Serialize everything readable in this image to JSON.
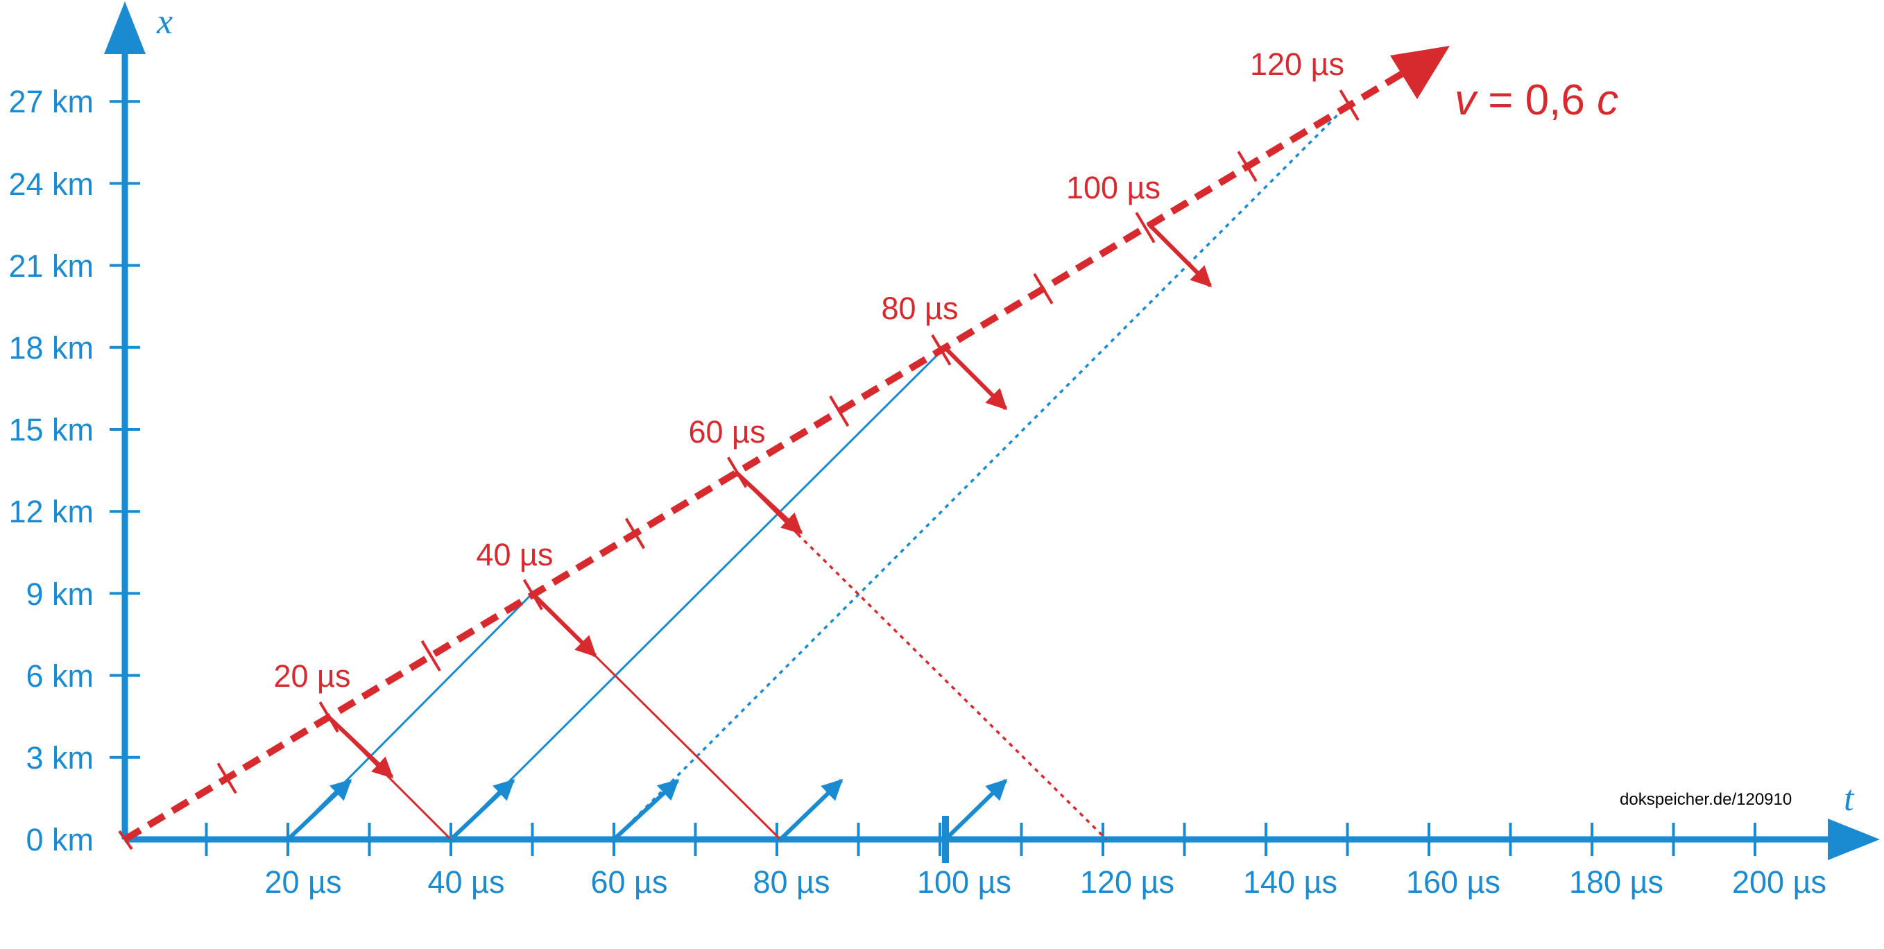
{
  "colors": {
    "axes": "#1a8bd0",
    "ship": "#d62a2f"
  },
  "axes": {
    "x_axis_var": "t",
    "y_axis_var": "x",
    "x_ticks": [
      "20 µs",
      "40 µs",
      "60 µs",
      "80 µs",
      "100 µs",
      "120 µs",
      "140 µs",
      "160 µs",
      "180 µs",
      "200 µs"
    ],
    "y_ticks": [
      "0 km",
      "3 km",
      "6 km",
      "9 km",
      "12 km",
      "15 km",
      "18 km",
      "21 km",
      "24 km",
      "27 km"
    ]
  },
  "ship": {
    "velocity_var": "v",
    "velocity_rest": " = 0,6 ",
    "velocity_c": "c",
    "time_labels": [
      "20 µs",
      "40 µs",
      "60 µs",
      "80 µs",
      "100 µs",
      "120 µs"
    ]
  },
  "credit": "dokspeicher.de/120910"
}
